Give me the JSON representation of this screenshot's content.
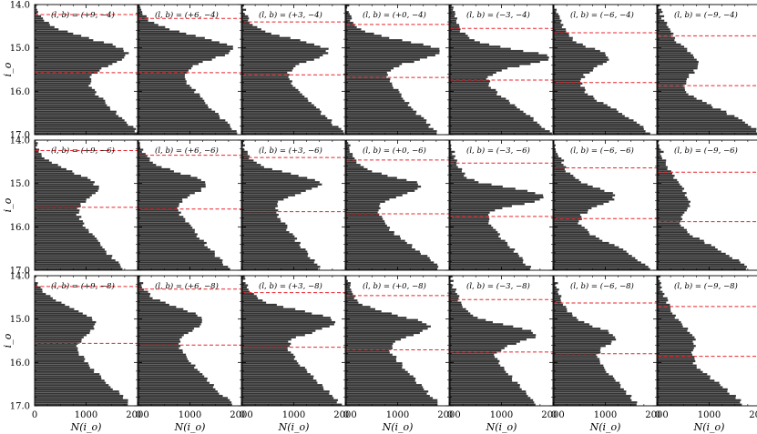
{
  "chart_data": {
    "type": "bar",
    "orientation": "horizontal",
    "layout": {
      "rows": 3,
      "cols": 7
    },
    "xlabel": "N(i_o)",
    "ylabel": "i_o",
    "xlim": [
      0,
      2000
    ],
    "ylim": [
      14.0,
      17.0
    ],
    "y_inverted": true,
    "xticks": [
      0,
      1000,
      2000
    ],
    "yticks": [
      14.0,
      15.0,
      16.0,
      17.0
    ],
    "yticklabels": [
      "14.0",
      "15.0",
      "16.0",
      "17.0"
    ],
    "bar_color": "#333333",
    "line_color": "#e8242b",
    "line_style": "dashed",
    "bins": {
      "start": 13.7,
      "end": 17.0,
      "width": 0.05
    },
    "panels": [
      {
        "label": "(l, b) = (+9, −4)",
        "l": 9,
        "b": -4,
        "lines": [
          14.23,
          15.57
        ],
        "profile": {
          "low": 0,
          "peak": 1780,
          "peak_at": 15.1,
          "sigma": 0.3,
          "trough": 1350,
          "high": 2000
        }
      },
      {
        "label": "(l, b) = (+6, −4)",
        "l": 6,
        "b": -4,
        "lines": [
          14.32,
          15.57
        ],
        "profile": {
          "low": 0,
          "peak": 1820,
          "peak_at": 15.0,
          "sigma": 0.27,
          "trough": 1280,
          "high": 1900
        }
      },
      {
        "label": "(l, b) = (+3, −4)",
        "l": 3,
        "b": -4,
        "lines": [
          14.4,
          15.62
        ],
        "profile": {
          "low": 0,
          "peak": 1650,
          "peak_at": 15.05,
          "sigma": 0.24,
          "trough": 1050,
          "high": 1950
        }
      },
      {
        "label": "(l, b) = (+0, −4)",
        "l": 0,
        "b": -4,
        "lines": [
          14.46,
          15.68
        ],
        "profile": {
          "low": 0,
          "peak": 1820,
          "peak_at": 15.07,
          "sigma": 0.22,
          "trough": 1050,
          "high": 1750
        }
      },
      {
        "label": "(l, b) = (−3, −4)",
        "l": -3,
        "b": -4,
        "lines": [
          14.55,
          15.74
        ],
        "profile": {
          "low": 0,
          "peak": 1930,
          "peak_at": 15.22,
          "sigma": 0.18,
          "trough": 850,
          "high": 1950
        }
      },
      {
        "label": "(l, b) = (−6, −4)",
        "l": -6,
        "b": -4,
        "lines": [
          14.65,
          15.8
        ],
        "profile": {
          "low": 0,
          "peak": 1100,
          "peak_at": 15.22,
          "sigma": 0.2,
          "trough": 600,
          "high": 1850
        }
      },
      {
        "label": "(l, b) = (−9, −4)",
        "l": -9,
        "b": -4,
        "lines": [
          14.72,
          15.87
        ],
        "profile": {
          "low": 0,
          "peak": 850,
          "peak_at": 15.3,
          "sigma": 0.22,
          "trough": 600,
          "high": 2000
        }
      },
      {
        "label": "(l, b) = (+9, −6)",
        "l": 9,
        "b": -6,
        "lines": [
          14.24,
          15.55
        ],
        "profile": {
          "low": 0,
          "peak": 1200,
          "peak_at": 15.05,
          "sigma": 0.3,
          "trough": 950,
          "high": 1700
        }
      },
      {
        "label": "(l, b) = (+6, −6)",
        "l": 6,
        "b": -6,
        "lines": [
          14.35,
          15.59
        ],
        "profile": {
          "low": 0,
          "peak": 1300,
          "peak_at": 15.0,
          "sigma": 0.24,
          "trough": 950,
          "high": 1750
        }
      },
      {
        "label": "(l, b) = (+3, −6)",
        "l": 3,
        "b": -6,
        "lines": [
          14.4,
          15.65
        ],
        "profile": {
          "low": 0,
          "peak": 1500,
          "peak_at": 15.0,
          "sigma": 0.22,
          "trough": 800,
          "high": 1500
        }
      },
      {
        "label": "(l, b) = (+0, −6)",
        "l": 0,
        "b": -6,
        "lines": [
          14.46,
          15.7
        ],
        "profile": {
          "low": 0,
          "peak": 1450,
          "peak_at": 15.05,
          "sigma": 0.2,
          "trough": 750,
          "high": 1800
        }
      },
      {
        "label": "(l, b) = (−3, −6)",
        "l": -3,
        "b": -6,
        "lines": [
          14.53,
          15.76
        ],
        "profile": {
          "low": 0,
          "peak": 1850,
          "peak_at": 15.3,
          "sigma": 0.18,
          "trough": 800,
          "high": 1550
        }
      },
      {
        "label": "(l, b) = (−6, −6)",
        "l": -6,
        "b": -6,
        "lines": [
          14.64,
          15.81
        ],
        "profile": {
          "low": 0,
          "peak": 1250,
          "peak_at": 15.3,
          "sigma": 0.2,
          "trough": 550,
          "high": 1850
        }
      },
      {
        "label": "(l, b) = (−9, −6)",
        "l": -9,
        "b": -6,
        "lines": [
          14.74,
          15.88
        ],
        "profile": {
          "low": 0,
          "peak": 700,
          "peak_at": 15.4,
          "sigma": 0.3,
          "trough": 500,
          "high": 1750
        }
      },
      {
        "label": "(l, b) = (+9, −8)",
        "l": 9,
        "b": -8,
        "lines": [
          14.25,
          15.56
        ],
        "profile": {
          "low": 0,
          "peak": 1150,
          "peak_at": 15.05,
          "sigma": 0.3,
          "trough": 900,
          "high": 1850
        }
      },
      {
        "label": "(l, b) = (+6, −8)",
        "l": 6,
        "b": -8,
        "lines": [
          14.31,
          15.6
        ],
        "profile": {
          "low": 0,
          "peak": 1250,
          "peak_at": 15.0,
          "sigma": 0.25,
          "trough": 1050,
          "high": 1800
        }
      },
      {
        "label": "(l, b) = (+3, −8)",
        "l": 3,
        "b": -8,
        "lines": [
          14.39,
          15.65
        ],
        "profile": {
          "low": 0,
          "peak": 1800,
          "peak_at": 15.05,
          "sigma": 0.24,
          "trough": 1300,
          "high": 1900
        }
      },
      {
        "label": "(l, b) = (+0, −8)",
        "l": 0,
        "b": -8,
        "lines": [
          14.46,
          15.71
        ],
        "profile": {
          "low": 0,
          "peak": 1600,
          "peak_at": 15.15,
          "sigma": 0.22,
          "trough": 1200,
          "high": 1800
        }
      },
      {
        "label": "(l, b) = (−3, −8)",
        "l": -3,
        "b": -8,
        "lines": [
          14.55,
          15.76
        ],
        "profile": {
          "low": 0,
          "peak": 1650,
          "peak_at": 15.35,
          "sigma": 0.2,
          "trough": 1100,
          "high": 1650
        }
      },
      {
        "label": "(l, b) = (−6, −8)",
        "l": -6,
        "b": -8,
        "lines": [
          14.63,
          15.8
        ],
        "profile": {
          "low": 0,
          "peak": 1200,
          "peak_at": 15.4,
          "sigma": 0.2,
          "trough": 900,
          "high": 1600
        }
      },
      {
        "label": "(l, b) = (−9, −8)",
        "l": -9,
        "b": -8,
        "lines": [
          14.71,
          15.86
        ],
        "profile": {
          "low": 0,
          "peak": 800,
          "peak_at": 15.5,
          "sigma": 0.25,
          "trough": 700,
          "high": 1650
        }
      }
    ]
  }
}
